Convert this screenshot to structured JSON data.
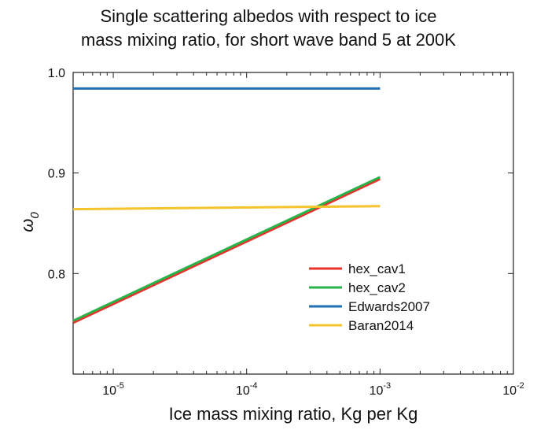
{
  "chart_data": {
    "type": "line",
    "title": [
      "Single scattering albedos with respect to ice",
      "mass mixing ratio, for short wave band 5 at 200K"
    ],
    "xlabel": "Ice mass mixing ratio, Kg per Kg",
    "ylabel": "ω",
    "ylabel_sub": "0",
    "xscale": "log",
    "xlim": [
      5e-06,
      0.01
    ],
    "ylim": [
      0.7,
      1.0
    ],
    "xticks": [
      {
        "value": 1e-05,
        "base": "10",
        "exp": "-5"
      },
      {
        "value": 0.0001,
        "base": "10",
        "exp": "-4"
      },
      {
        "value": 0.001,
        "base": "10",
        "exp": "-3"
      },
      {
        "value": 0.01,
        "base": "10",
        "exp": "-2"
      }
    ],
    "yticks": [
      {
        "value": 0.8,
        "label": "0.8"
      },
      {
        "value": 0.9,
        "label": "0.9"
      },
      {
        "value": 1.0,
        "label": "1.0"
      }
    ],
    "legend_position": "lower-right",
    "series": [
      {
        "name": "hex_cav1",
        "color": "#e8322b",
        "x": [
          5e-06,
          0.001
        ],
        "y": [
          0.751,
          0.894
        ]
      },
      {
        "name": "hex_cav2",
        "color": "#28b34b",
        "x": [
          5e-06,
          0.001
        ],
        "y": [
          0.753,
          0.896
        ]
      },
      {
        "name": "Edwards2007",
        "color": "#1f6fb5",
        "x": [
          5e-06,
          0.001
        ],
        "y": [
          0.984,
          0.984
        ]
      },
      {
        "name": "Baran2014",
        "color": "#f5c42c",
        "x": [
          5e-06,
          0.001
        ],
        "y": [
          0.864,
          0.867
        ]
      }
    ]
  }
}
